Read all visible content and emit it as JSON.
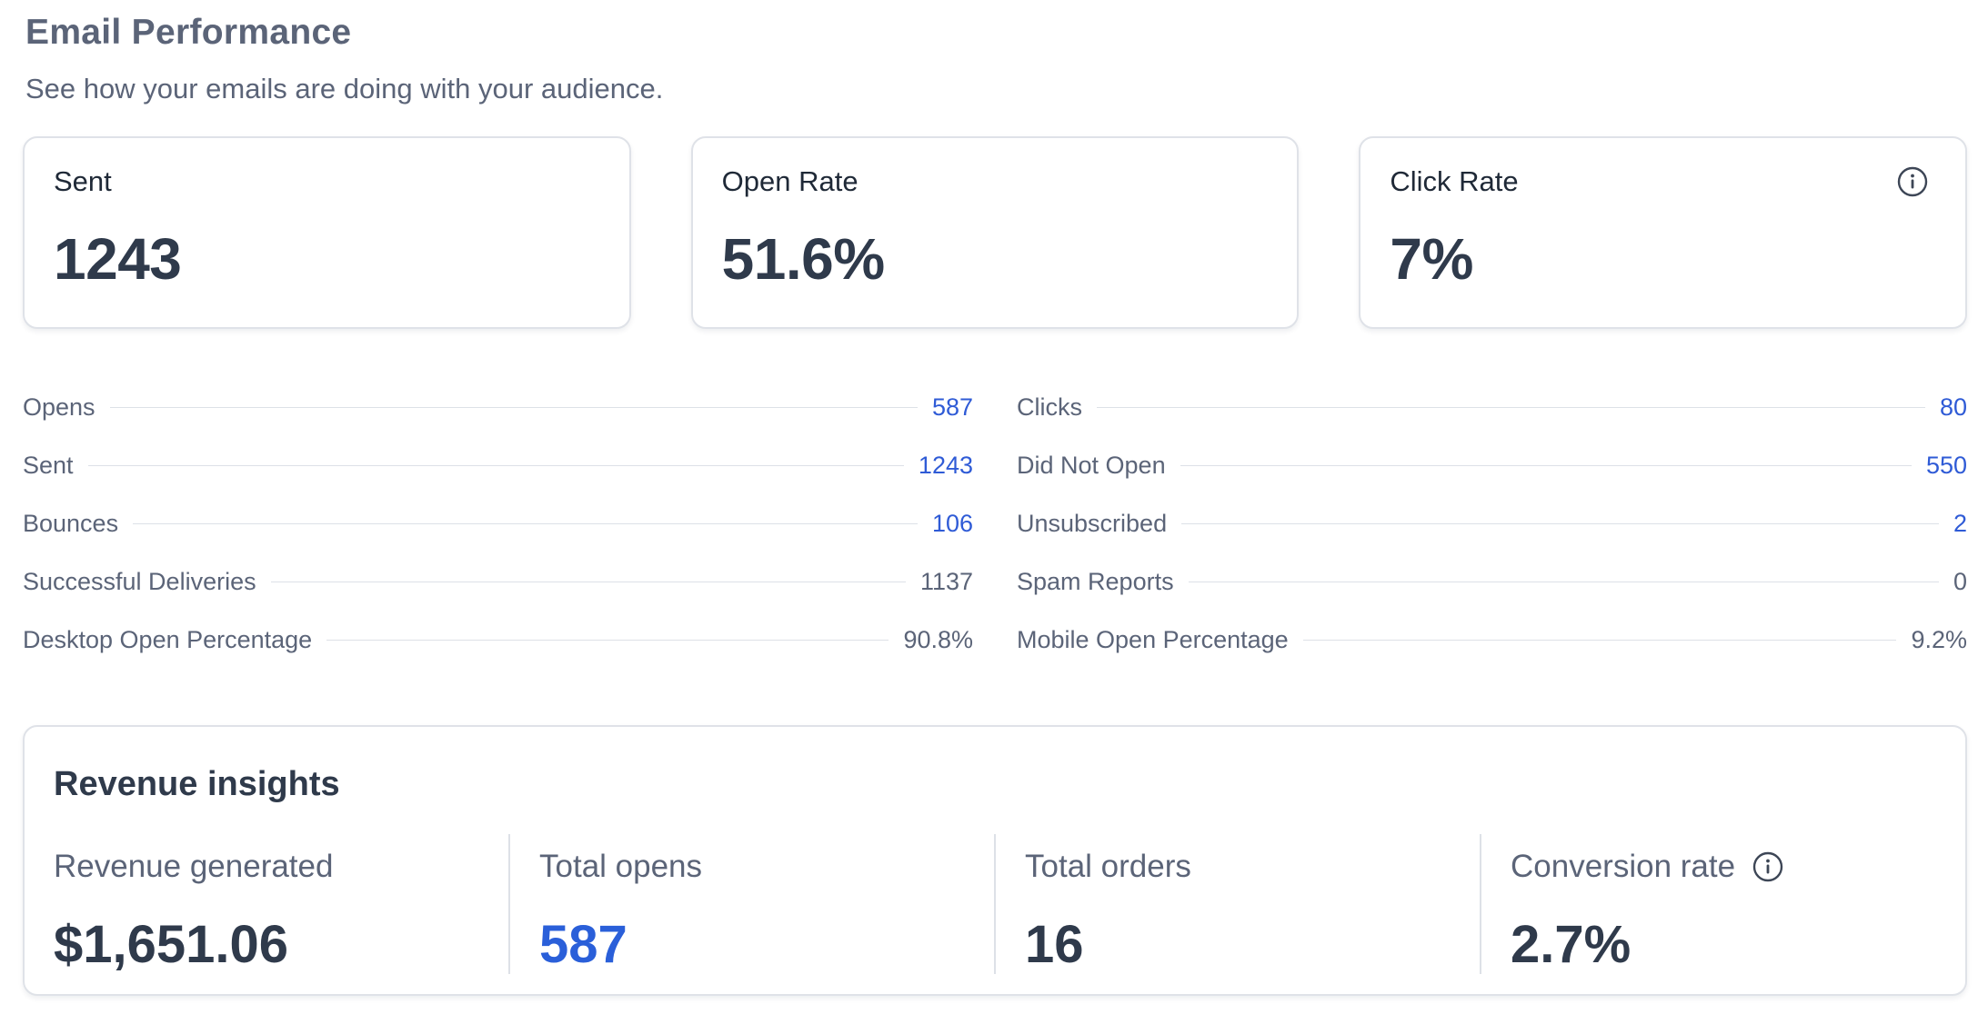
{
  "header": {
    "title": "Email Performance",
    "subtitle": "See how your emails are doing with your audience."
  },
  "cards": [
    {
      "label": "Sent",
      "value": "1243"
    },
    {
      "label": "Open Rate",
      "value": "51.6%"
    },
    {
      "label": "Click Rate",
      "value": "7%",
      "icon": "info-icon"
    }
  ],
  "stats": {
    "left": [
      {
        "label": "Opens",
        "value": "587",
        "color": "#2f5bd6"
      },
      {
        "label": "Sent",
        "value": "1243",
        "color": "#2f5bd6"
      },
      {
        "label": "Bounces",
        "value": "106",
        "color": "#2f5bd6"
      },
      {
        "label": "Successful Deliveries",
        "value": "1137",
        "color": "#5b6478"
      },
      {
        "label": "Desktop Open Percentage",
        "value": "90.8%",
        "color": "#5b6478"
      }
    ],
    "right": [
      {
        "label": "Clicks",
        "value": "80",
        "color": "#2f5bd6"
      },
      {
        "label": "Did Not Open",
        "value": "550",
        "color": "#2f5bd6"
      },
      {
        "label": "Unsubscribed",
        "value": "2",
        "color": "#2f5bd6"
      },
      {
        "label": "Spam Reports",
        "value": "0",
        "color": "#5b6478"
      },
      {
        "label": "Mobile Open Percentage",
        "value": "9.2%",
        "color": "#5b6478"
      }
    ]
  },
  "revenue": {
    "title": "Revenue insights",
    "metrics": [
      {
        "label": "Revenue generated",
        "value": "$1,651.06"
      },
      {
        "label": "Total opens",
        "value": "587",
        "color": "#2a5fd9"
      },
      {
        "label": "Total orders",
        "value": "16"
      },
      {
        "label": "Conversion rate",
        "value": "2.7%",
        "icon": "info-icon"
      }
    ]
  }
}
